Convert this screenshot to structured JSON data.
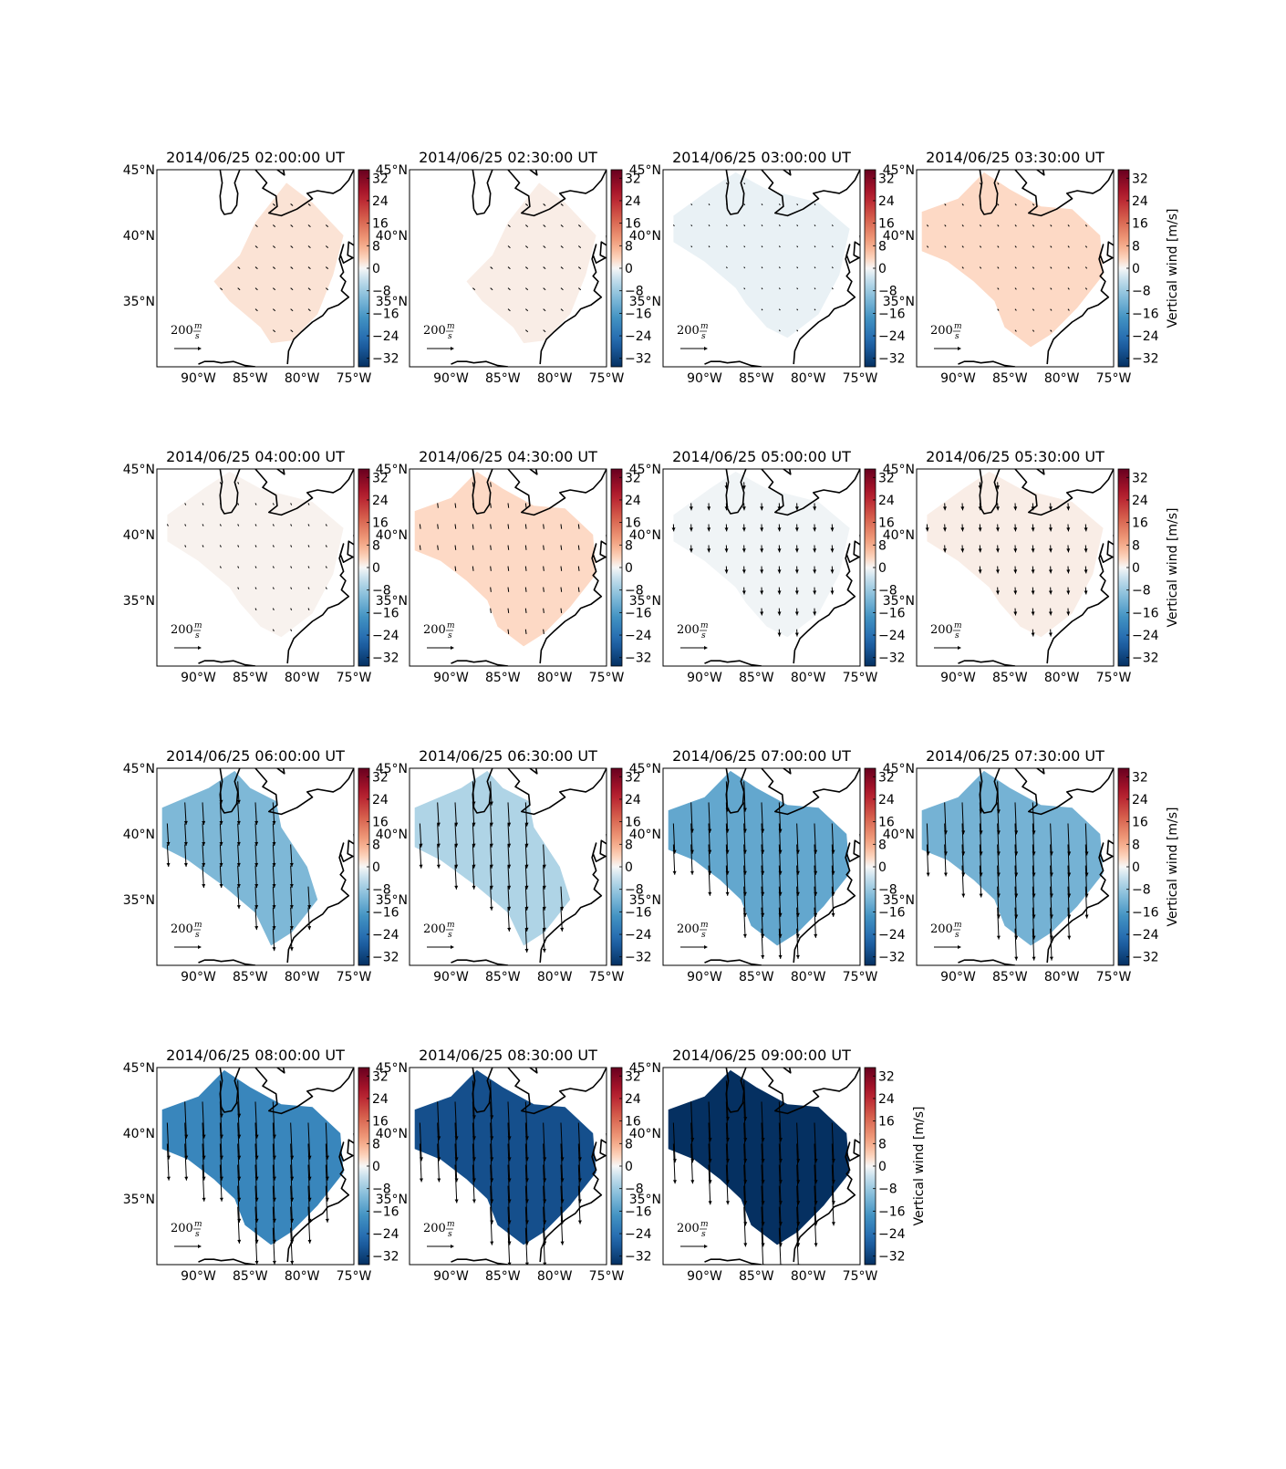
{
  "figure": {
    "colorbar_label": "Vertical wind [m/s]",
    "colorbar_ticks": [
      "32",
      "24",
      "16",
      "8",
      "0",
      "−8",
      "−16",
      "−24",
      "−32"
    ],
    "lat_ticks": [
      "45°N",
      "40°N",
      "35°N"
    ],
    "lon_ticks": [
      "90°W",
      "85°W",
      "80°W",
      "75°W"
    ],
    "scale_value": "200",
    "scale_unit_num": "m",
    "scale_unit_den": "s",
    "colormap": "RdBu_r"
  },
  "chart_data": [
    {
      "type": "heatmap",
      "title": "2014/06/25 02:00:00 UT",
      "vertical_wind": 2,
      "arrow_u": 14,
      "arrow_v": -12,
      "region": "small",
      "clim": [
        -35,
        35
      ],
      "xlim": [
        -94,
        -75
      ],
      "ylim": [
        30,
        45
      ]
    },
    {
      "type": "heatmap",
      "title": "2014/06/25 02:30:00 UT",
      "vertical_wind": 1,
      "arrow_u": 14,
      "arrow_v": -12,
      "region": "small",
      "clim": [
        -35,
        35
      ],
      "xlim": [
        -94,
        -75
      ],
      "ylim": [
        30,
        45
      ]
    },
    {
      "type": "heatmap",
      "title": "2014/06/25 03:00:00 UT",
      "vertical_wind": -1,
      "arrow_u": 6,
      "arrow_v": -8,
      "region": "mid",
      "clim": [
        -35,
        35
      ],
      "xlim": [
        -94,
        -75
      ],
      "ylim": [
        30,
        45
      ]
    },
    {
      "type": "heatmap",
      "title": "2014/06/25 03:30:00 UT",
      "vertical_wind": 3,
      "arrow_u": 8,
      "arrow_v": -10,
      "region": "large",
      "clim": [
        -35,
        35
      ],
      "xlim": [
        -94,
        -75
      ],
      "ylim": [
        30,
        45
      ]
    },
    {
      "type": "heatmap",
      "title": "2014/06/25 04:00:00 UT",
      "vertical_wind": 0.5,
      "arrow_u": 6,
      "arrow_v": -12,
      "region": "mid",
      "clim": [
        -35,
        35
      ],
      "xlim": [
        -94,
        -75
      ],
      "ylim": [
        30,
        45
      ]
    },
    {
      "type": "heatmap",
      "title": "2014/06/25 04:30:00 UT",
      "vertical_wind": 3,
      "arrow_u": 4,
      "arrow_v": -30,
      "region": "large",
      "clim": [
        -35,
        35
      ],
      "xlim": [
        -94,
        -75
      ],
      "ylim": [
        30,
        45
      ]
    },
    {
      "type": "heatmap",
      "title": "2014/06/25 05:00:00 UT",
      "vertical_wind": -0.5,
      "arrow_u": 2,
      "arrow_v": -45,
      "region": "mid",
      "clim": [
        -35,
        35
      ],
      "xlim": [
        -94,
        -75
      ],
      "ylim": [
        30,
        45
      ]
    },
    {
      "type": "heatmap",
      "title": "2014/06/25 05:30:00 UT",
      "vertical_wind": 1,
      "arrow_u": 3,
      "arrow_v": -45,
      "region": "mid",
      "clim": [
        -35,
        35
      ],
      "xlim": [
        -94,
        -75
      ],
      "ylim": [
        30,
        45
      ]
    },
    {
      "type": "heatmap",
      "title": "2014/06/25 06:00:00 UT",
      "vertical_wind": -11,
      "arrow_u": 8,
      "arrow_v": -140,
      "region": "band",
      "clim": [
        -35,
        35
      ],
      "xlim": [
        -94,
        -75
      ],
      "ylim": [
        30,
        45
      ]
    },
    {
      "type": "heatmap",
      "title": "2014/06/25 06:30:00 UT",
      "vertical_wind": -6,
      "arrow_u": 8,
      "arrow_v": -150,
      "region": "band",
      "clim": [
        -35,
        35
      ],
      "xlim": [
        -94,
        -75
      ],
      "ylim": [
        30,
        45
      ]
    },
    {
      "type": "heatmap",
      "title": "2014/06/25 07:00:00 UT",
      "vertical_wind": -14,
      "arrow_u": 8,
      "arrow_v": -190,
      "region": "large",
      "clim": [
        -35,
        35
      ],
      "xlim": [
        -94,
        -75
      ],
      "ylim": [
        30,
        45
      ]
    },
    {
      "type": "heatmap",
      "title": "2014/06/25 07:30:00 UT",
      "vertical_wind": -12,
      "arrow_u": 8,
      "arrow_v": -200,
      "region": "large",
      "clim": [
        -35,
        35
      ],
      "xlim": [
        -94,
        -75
      ],
      "ylim": [
        30,
        45
      ]
    },
    {
      "type": "heatmap",
      "title": "2014/06/25 08:00:00 UT",
      "vertical_wind": -20,
      "arrow_u": 10,
      "arrow_v": -230,
      "region": "large",
      "clim": [
        -35,
        35
      ],
      "xlim": [
        -94,
        -75
      ],
      "ylim": [
        30,
        45
      ]
    },
    {
      "type": "heatmap",
      "title": "2014/06/25 08:30:00 UT",
      "vertical_wind": -30,
      "arrow_u": 10,
      "arrow_v": -240,
      "region": "large",
      "clim": [
        -35,
        35
      ],
      "xlim": [
        -94,
        -75
      ],
      "ylim": [
        30,
        45
      ]
    },
    {
      "type": "heatmap",
      "title": "2014/06/25 09:00:00 UT",
      "vertical_wind": -35,
      "arrow_u": 10,
      "arrow_v": -250,
      "region": "large",
      "clim": [
        -35,
        35
      ],
      "xlim": [
        -94,
        -75
      ],
      "ylim": [
        30,
        45
      ]
    }
  ]
}
